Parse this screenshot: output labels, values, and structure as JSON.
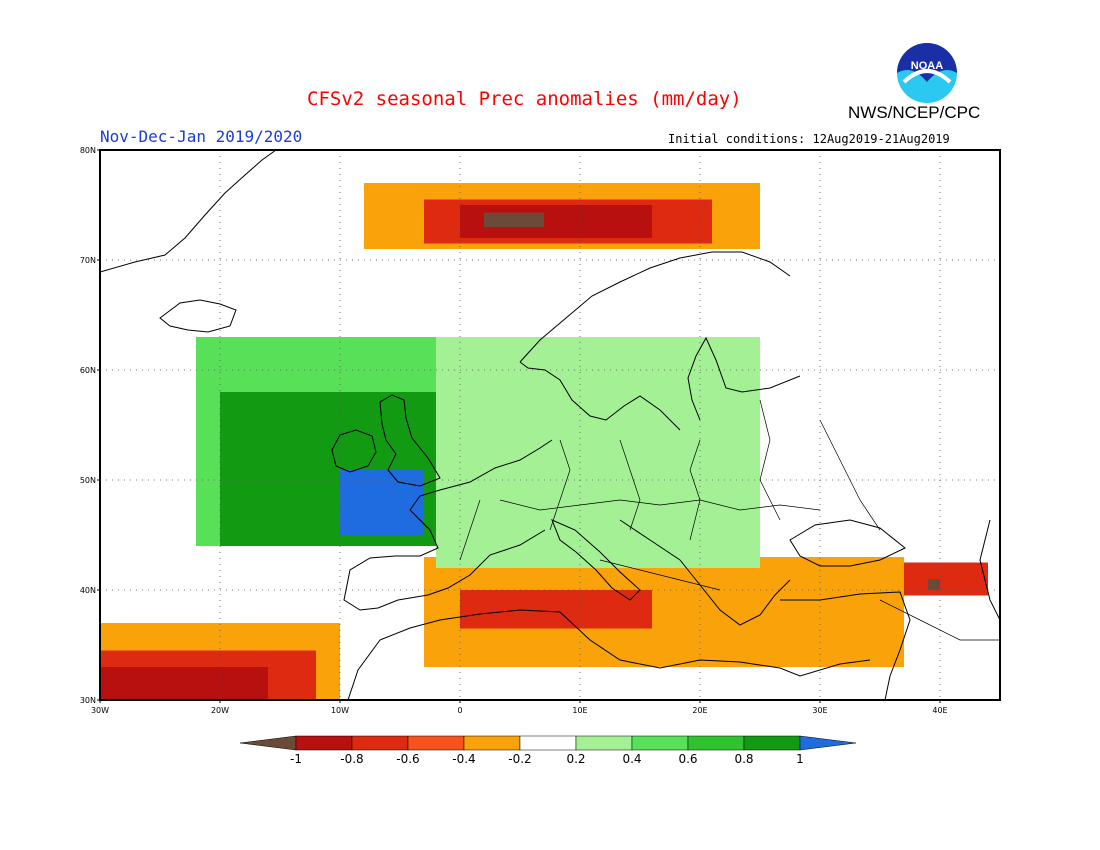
{
  "header": {
    "title": "CFSv2 seasonal Prec anomalies (mm/day)",
    "period": "Nov-Dec-Jan 2019/2020",
    "initial_conditions": "Initial conditions: 12Aug2019-21Aug2019",
    "agency": "NWS/NCEP/CPC",
    "logo_text": "NOAA"
  },
  "map": {
    "projection": "lat-lon",
    "lon_range": [
      -30,
      45
    ],
    "lat_range": [
      30,
      80
    ],
    "lat_labels": [
      "30N",
      "40N",
      "50N",
      "60N",
      "70N",
      "80N"
    ],
    "lon_labels": [
      "30W",
      "20W",
      "10W",
      "0",
      "10E",
      "20E",
      "30E",
      "40E"
    ],
    "grid": "dotted"
  },
  "legend": {
    "tick_labels": [
      "-1",
      "-0.8",
      "-0.6",
      "-0.4",
      "-0.2",
      "0.2",
      "0.4",
      "0.6",
      "0.8",
      "1"
    ],
    "colors": [
      "#6b4a3a",
      "#b80f0f",
      "#dd2a10",
      "#f9521c",
      "#f9a20a",
      "#ffffff",
      "#a4f095",
      "#58e058",
      "#2fc42f",
      "#139a13",
      "#1e6ce0"
    ]
  },
  "anomaly_regions": [
    {
      "level": "-0.2",
      "color": "#f9a20a",
      "area": "Norwegian Sea / Barents Sea",
      "lon": [
        -8,
        25
      ],
      "lat": [
        71,
        77
      ]
    },
    {
      "level": "-0.6",
      "color": "#dd2a10",
      "area": "Norwegian Sea core",
      "lon": [
        -3,
        21
      ],
      "lat": [
        71.5,
        75.5
      ]
    },
    {
      "level": "-0.8",
      "color": "#b80f0f",
      "area": "Norwegian Sea core",
      "lon": [
        0,
        16
      ],
      "lat": [
        72,
        75
      ]
    },
    {
      "level": "-1",
      "color": "#6b4a3a",
      "area": "Norwegian Sea core",
      "lon": [
        2,
        7
      ],
      "lat": [
        73,
        74.3
      ]
    },
    {
      "level": "-0.2",
      "color": "#f9a20a",
      "area": "Mediterranean / North Africa",
      "lon": [
        -3,
        37
      ],
      "lat": [
        33,
        43
      ]
    },
    {
      "level": "-0.6",
      "color": "#dd2a10",
      "area": "Mediterranean / North Africa",
      "lon": [
        0,
        16
      ],
      "lat": [
        36.5,
        40
      ]
    },
    {
      "level": "-0.2",
      "color": "#f9a20a",
      "area": "Subtropical Atlantic",
      "lon": [
        -30,
        -10
      ],
      "lat": [
        30,
        37
      ]
    },
    {
      "level": "-0.6",
      "color": "#dd2a10",
      "area": "Subtropical Atlantic",
      "lon": [
        -30,
        -12
      ],
      "lat": [
        30,
        34.5
      ]
    },
    {
      "level": "-0.8",
      "color": "#b80f0f",
      "area": "Subtropical Atlantic",
      "lon": [
        -30,
        -16
      ],
      "lat": [
        30,
        33
      ]
    },
    {
      "level": "-0.6",
      "color": "#dd2a10",
      "area": "Black Sea / Caucasus",
      "lon": [
        37,
        44
      ],
      "lat": [
        39.5,
        42.5
      ]
    },
    {
      "level": "-1",
      "color": "#6b4a3a",
      "area": "Eastern Turkey",
      "lon": [
        39,
        40
      ],
      "lat": [
        40,
        41
      ]
    },
    {
      "level": "0.4",
      "color": "#58e058",
      "area": "North Atlantic / NW Europe",
      "lon": [
        -22,
        16
      ],
      "lat": [
        44,
        63
      ]
    },
    {
      "level": "0.8",
      "color": "#139a13",
      "area": "British Isles / France",
      "lon": [
        -20,
        8
      ],
      "lat": [
        44,
        58
      ]
    },
    {
      "level": "1",
      "color": "#1e6ce0",
      "area": "Ireland / Bay of Biscay",
      "lon": [
        -10,
        -3
      ],
      "lat": [
        45,
        51
      ]
    },
    {
      "level": "0.2",
      "color": "#a4f095",
      "area": "Central / Eastern Europe",
      "lon": [
        -2,
        25
      ],
      "lat": [
        42,
        63
      ]
    }
  ]
}
